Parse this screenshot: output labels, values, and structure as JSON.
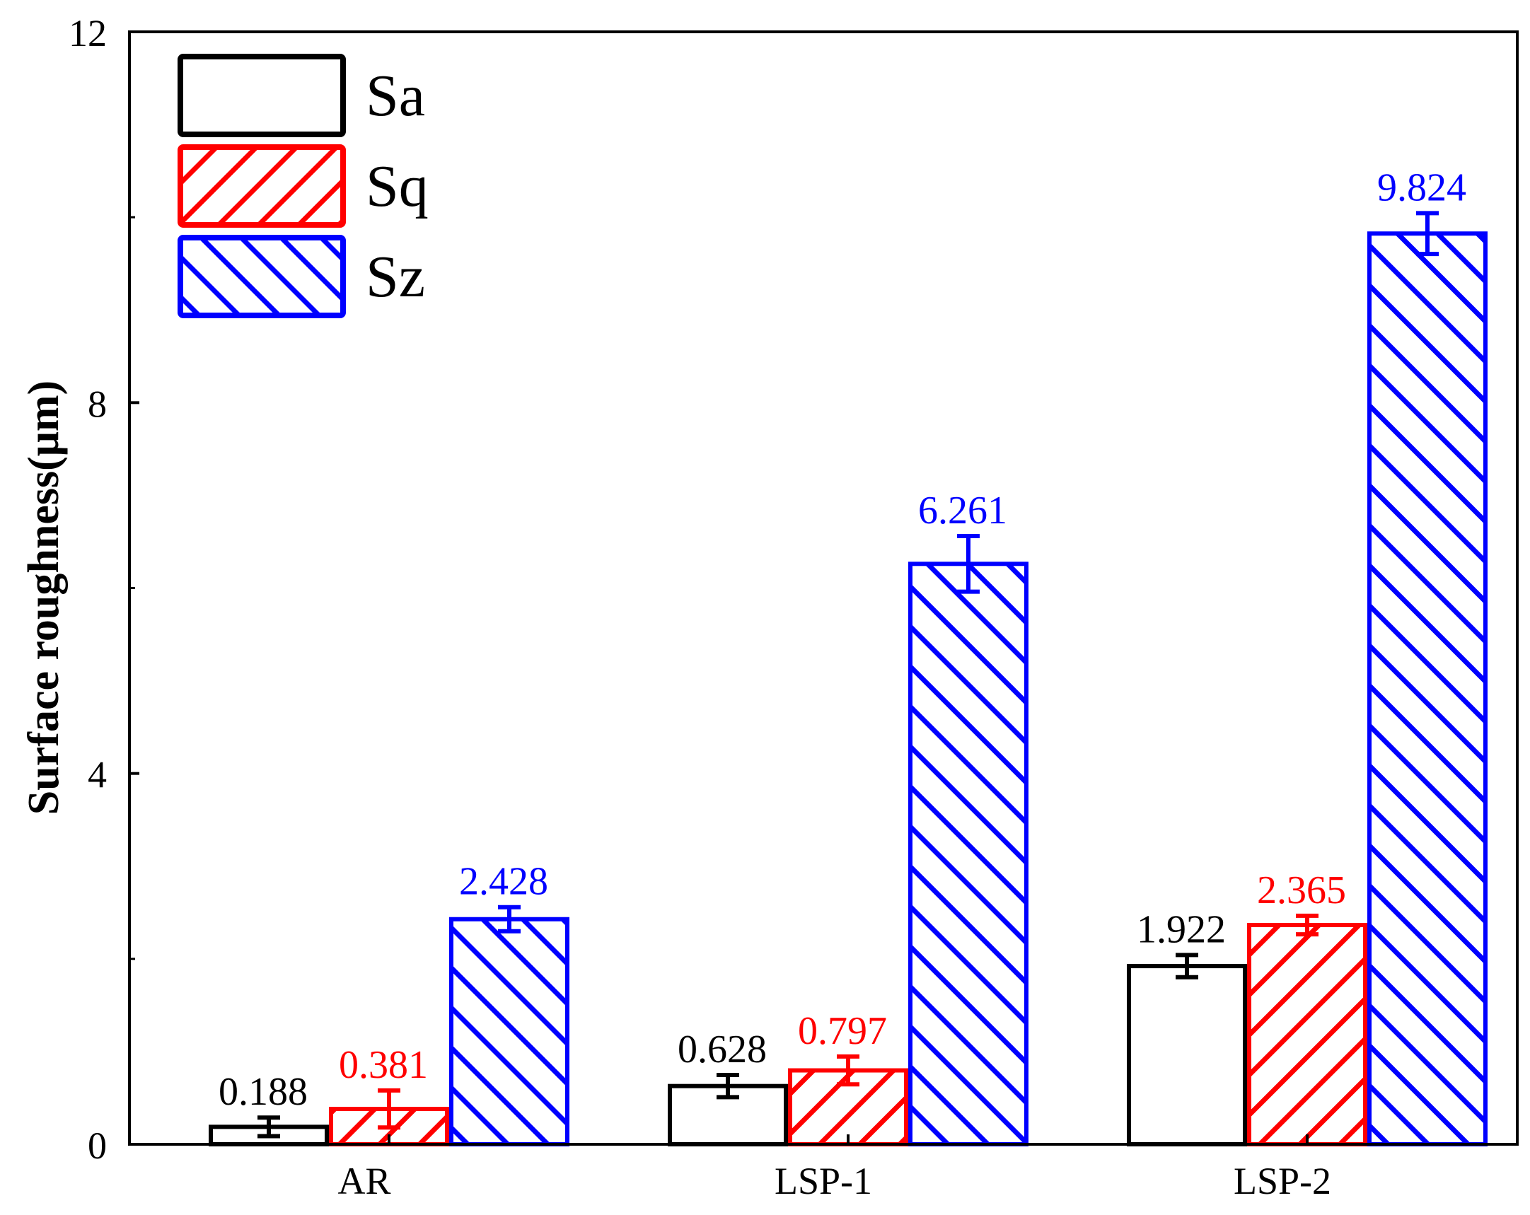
{
  "chart_data": {
    "type": "bar",
    "title": "",
    "xlabel": "",
    "ylabel": "Surface roughness(μm)",
    "categories": [
      "AR",
      "LSP-1",
      "LSP-2"
    ],
    "ylim": [
      0,
      12
    ],
    "yticks": [
      0,
      4,
      8,
      12
    ],
    "yticklabels": [
      "0",
      "4",
      "8",
      "12"
    ],
    "grid": false,
    "legend_position": "top-left",
    "series": [
      {
        "name": "Sa",
        "color": "#000000",
        "pattern": "none",
        "values": [
          0.188,
          0.628,
          1.922
        ],
        "labels": [
          "0.188",
          "0.628",
          "1.922"
        ],
        "errors": [
          0.1,
          0.12,
          0.12
        ]
      },
      {
        "name": "Sq",
        "color": "#ff0000",
        "pattern": "hatch-forward",
        "values": [
          0.381,
          0.797,
          2.365
        ],
        "labels": [
          "0.381",
          "0.797",
          "2.365"
        ],
        "errors": [
          0.2,
          0.15,
          0.1
        ]
      },
      {
        "name": "Sz",
        "color": "#0000ff",
        "pattern": "hatch-back",
        "values": [
          2.428,
          6.261,
          9.824
        ],
        "labels": [
          "2.428",
          "6.261",
          "9.824"
        ],
        "errors": [
          0.13,
          0.3,
          0.22
        ]
      }
    ]
  }
}
